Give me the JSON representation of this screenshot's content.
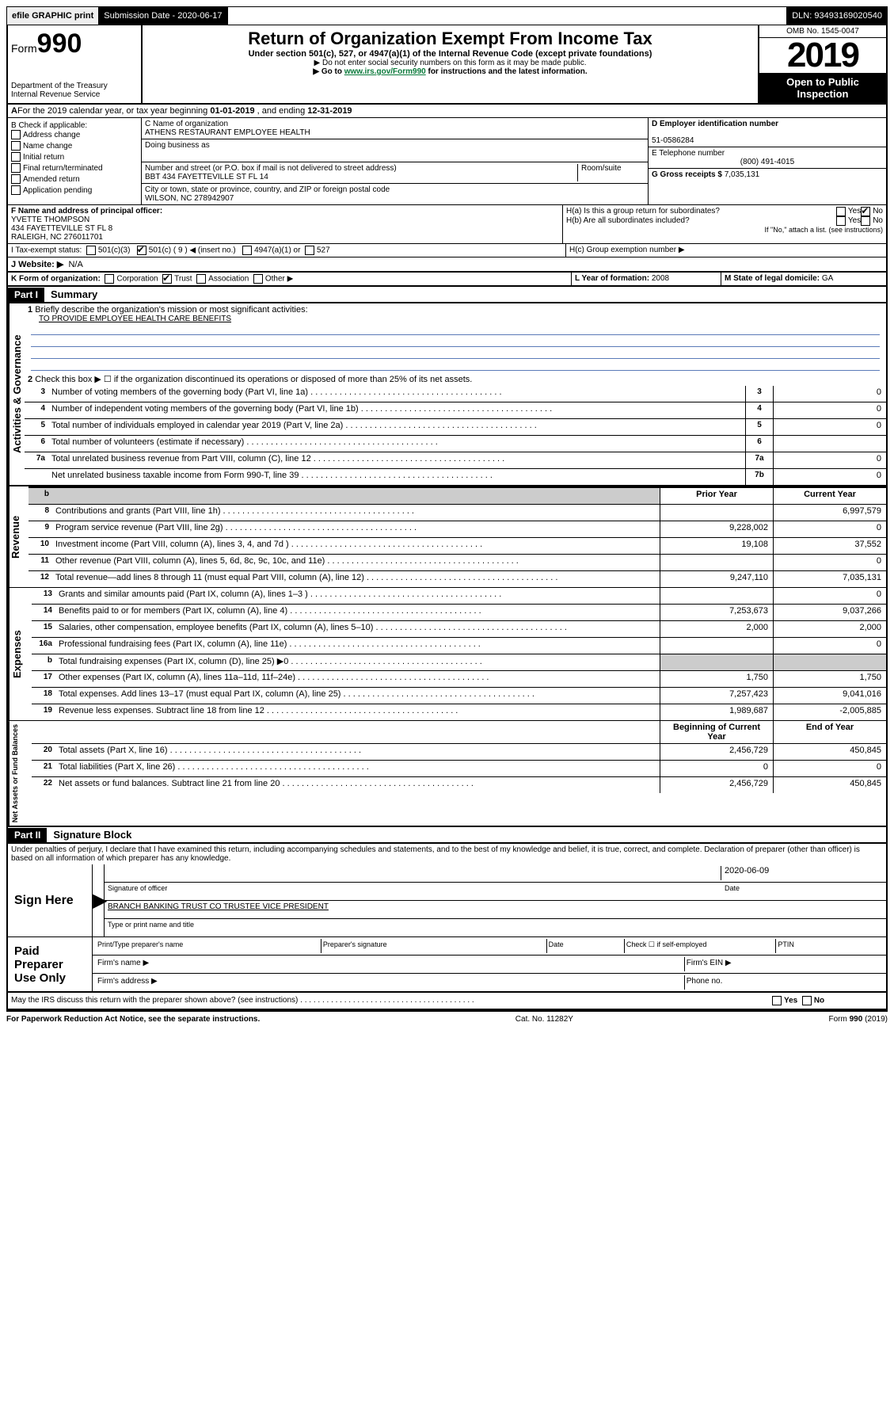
{
  "topbar": {
    "efile": "efile GRAPHIC print",
    "submission_label": "Submission Date - 2020-06-17",
    "dln": "DLN: 93493169020540"
  },
  "header": {
    "form_label": "Form",
    "form_num": "990",
    "dept": "Department of the Treasury",
    "irs": "Internal Revenue Service",
    "title": "Return of Organization Exempt From Income Tax",
    "subtitle": "Under section 501(c), 527, or 4947(a)(1) of the Internal Revenue Code (except private foundations)",
    "note1": "▶ Do not enter social security numbers on this form as it may be made public.",
    "note2_pre": "▶ Go to ",
    "note2_link": "www.irs.gov/Form990",
    "note2_post": " for instructions and the latest information.",
    "omb": "OMB No. 1545-0047",
    "year": "2019",
    "public": "Open to Public Inspection"
  },
  "period": {
    "text_a": "For the 2019 calendar year, or tax year beginning ",
    "begin": "01-01-2019",
    "text_b": " , and ending ",
    "end": "12-31-2019"
  },
  "boxB": {
    "label": "B Check if applicable:",
    "items": [
      "Address change",
      "Name change",
      "Initial return",
      "Final return/terminated",
      "Amended return",
      "Application pending"
    ]
  },
  "boxC": {
    "name_label": "C Name of organization",
    "name": "ATHENS RESTAURANT EMPLOYEE HEALTH",
    "dba_label": "Doing business as",
    "addr_label": "Number and street (or P.O. box if mail is not delivered to street address)",
    "room_label": "Room/suite",
    "addr": "BBT 434 FAYETTEVILLE ST FL 14",
    "city_label": "City or town, state or province, country, and ZIP or foreign postal code",
    "city": "WILSON, NC  278942907"
  },
  "boxD": {
    "label": "D Employer identification number",
    "value": "51-0586284"
  },
  "boxE": {
    "label": "E Telephone number",
    "value": "(800) 491-4015"
  },
  "boxG": {
    "label": "G Gross receipts $ ",
    "value": "7,035,131"
  },
  "boxF": {
    "label": "F Name and address of principal officer:",
    "name": "YVETTE THOMPSON",
    "addr1": "434 FAYETTEVILLE ST FL 8",
    "addr2": "RALEIGH, NC  276011701"
  },
  "boxH": {
    "a": "H(a)  Is this a group return for subordinates?",
    "b": "H(b)  Are all subordinates included?",
    "b_note": "If \"No,\" attach a list. (see instructions)",
    "c": "H(c)  Group exemption number ▶"
  },
  "boxI": {
    "label": "I  Tax-exempt status:",
    "opt1": "501(c)(3)",
    "opt2": "501(c) ( 9 ) ◀ (insert no.)",
    "opt3": "4947(a)(1) or",
    "opt4": "527"
  },
  "boxJ": {
    "label": "J  Website: ▶",
    "value": "N/A"
  },
  "boxK": {
    "label": "K Form of organization:",
    "opts": [
      "Corporation",
      "Trust",
      "Association",
      "Other ▶"
    ]
  },
  "boxL": {
    "label": "L Year of formation: ",
    "value": "2008"
  },
  "boxM": {
    "label": "M State of legal domicile: ",
    "value": "GA"
  },
  "part1": {
    "header": "Part I",
    "title": "Summary",
    "line1_label": "Briefly describe the organization's mission or most significant activities:",
    "line1_value": "TO PROVIDE EMPLOYEE HEALTH CARE BENEFITS",
    "line2": "Check this box ▶ ☐  if the organization discontinued its operations or disposed of more than 25% of its net assets.",
    "rows_a": [
      {
        "n": "3",
        "t": "Number of voting members of the governing body (Part VI, line 1a)",
        "k": "3",
        "v": "0"
      },
      {
        "n": "4",
        "t": "Number of independent voting members of the governing body (Part VI, line 1b)",
        "k": "4",
        "v": "0"
      },
      {
        "n": "5",
        "t": "Total number of individuals employed in calendar year 2019 (Part V, line 2a)",
        "k": "5",
        "v": "0"
      },
      {
        "n": "6",
        "t": "Total number of volunteers (estimate if necessary)",
        "k": "6",
        "v": ""
      },
      {
        "n": "7a",
        "t": "Total unrelated business revenue from Part VIII, column (C), line 12",
        "k": "7a",
        "v": "0"
      },
      {
        "n": "",
        "t": "Net unrelated business taxable income from Form 990-T, line 39",
        "k": "7b",
        "v": "0"
      }
    ],
    "col_prior": "Prior Year",
    "col_current": "Current Year",
    "rows_rev": [
      {
        "n": "8",
        "t": "Contributions and grants (Part VIII, line 1h)",
        "p": "",
        "c": "6,997,579"
      },
      {
        "n": "9",
        "t": "Program service revenue (Part VIII, line 2g)",
        "p": "9,228,002",
        "c": "0"
      },
      {
        "n": "10",
        "t": "Investment income (Part VIII, column (A), lines 3, 4, and 7d )",
        "p": "19,108",
        "c": "37,552"
      },
      {
        "n": "11",
        "t": "Other revenue (Part VIII, column (A), lines 5, 6d, 8c, 9c, 10c, and 11e)",
        "p": "",
        "c": "0"
      },
      {
        "n": "12",
        "t": "Total revenue—add lines 8 through 11 (must equal Part VIII, column (A), line 12)",
        "p": "9,247,110",
        "c": "7,035,131"
      }
    ],
    "rows_exp": [
      {
        "n": "13",
        "t": "Grants and similar amounts paid (Part IX, column (A), lines 1–3 )",
        "p": "",
        "c": "0"
      },
      {
        "n": "14",
        "t": "Benefits paid to or for members (Part IX, column (A), line 4)",
        "p": "7,253,673",
        "c": "9,037,266"
      },
      {
        "n": "15",
        "t": "Salaries, other compensation, employee benefits (Part IX, column (A), lines 5–10)",
        "p": "2,000",
        "c": "2,000"
      },
      {
        "n": "16a",
        "t": "Professional fundraising fees (Part IX, column (A), line 11e)",
        "p": "",
        "c": "0"
      },
      {
        "n": "b",
        "t": "Total fundraising expenses (Part IX, column (D), line 25) ▶0",
        "p": "gray",
        "c": "gray"
      },
      {
        "n": "17",
        "t": "Other expenses (Part IX, column (A), lines 11a–11d, 11f–24e)",
        "p": "1,750",
        "c": "1,750"
      },
      {
        "n": "18",
        "t": "Total expenses. Add lines 13–17 (must equal Part IX, column (A), line 25)",
        "p": "7,257,423",
        "c": "9,041,016"
      },
      {
        "n": "19",
        "t": "Revenue less expenses. Subtract line 18 from line 12",
        "p": "1,989,687",
        "c": "-2,005,885"
      }
    ],
    "col_begin": "Beginning of Current Year",
    "col_end": "End of Year",
    "rows_net": [
      {
        "n": "20",
        "t": "Total assets (Part X, line 16)",
        "p": "2,456,729",
        "c": "450,845"
      },
      {
        "n": "21",
        "t": "Total liabilities (Part X, line 26)",
        "p": "0",
        "c": "0"
      },
      {
        "n": "22",
        "t": "Net assets or fund balances. Subtract line 21 from line 20",
        "p": "2,456,729",
        "c": "450,845"
      }
    ],
    "side_a": "Activities & Governance",
    "side_rev": "Revenue",
    "side_exp": "Expenses",
    "side_net": "Net Assets or Fund Balances"
  },
  "part2": {
    "header": "Part II",
    "title": "Signature Block",
    "perjury": "Under penalties of perjury, I declare that I have examined this return, including accompanying schedules and statements, and to the best of my knowledge and belief, it is true, correct, and complete. Declaration of preparer (other than officer) is based on all information of which preparer has any knowledge.",
    "sign_here": "Sign Here",
    "sig_officer": "Signature of officer",
    "date_label": "Date",
    "date_value": "2020-06-09",
    "name_title": "BRANCH BANKING TRUST CO TRUSTEE  VICE PRESIDENT",
    "name_title_label": "Type or print name and title",
    "paid": "Paid Preparer Use Only",
    "pp_name_label": "Print/Type preparer's name",
    "pp_sig_label": "Preparer's signature",
    "pp_date_label": "Date",
    "pp_check_label": "Check ☐ if self-employed",
    "pp_ptin_label": "PTIN",
    "firm_name": "Firm's name    ▶",
    "firm_ein": "Firm's EIN ▶",
    "firm_addr": "Firm's address ▶",
    "phone": "Phone no.",
    "discuss": "May the IRS discuss this return with the preparer shown above? (see instructions)",
    "yes": "Yes",
    "no": "No"
  },
  "footer": {
    "left": "For Paperwork Reduction Act Notice, see the separate instructions.",
    "mid": "Cat. No. 11282Y",
    "right": "Form 990 (2019)"
  }
}
